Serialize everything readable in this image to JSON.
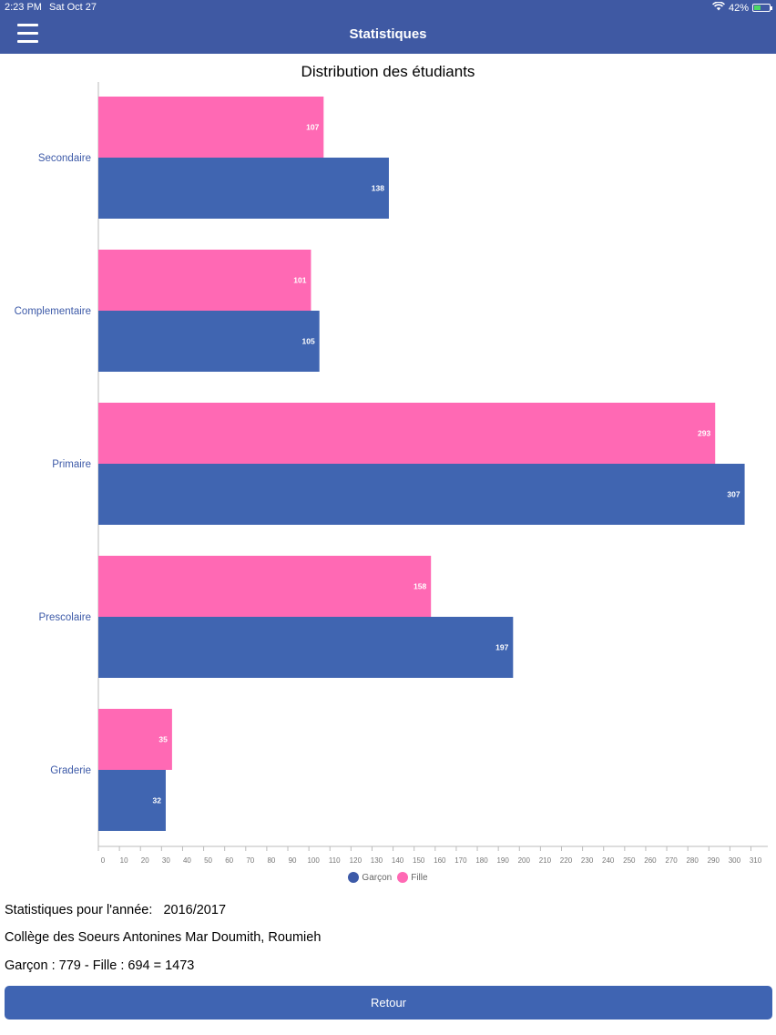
{
  "status_bar": {
    "time": "2:23 PM",
    "date": "Sat Oct 27",
    "battery": "42%"
  },
  "nav": {
    "title": "Statistiques"
  },
  "chart_data": {
    "type": "bar",
    "orientation": "horizontal",
    "title": "Distribution des étudiants",
    "categories": [
      "Secondaire",
      "Complementaire",
      "Primaire",
      "Prescolaire",
      "Graderie"
    ],
    "series": [
      {
        "name": "Fille",
        "color": "#ff69b4",
        "values": [
          107,
          101,
          293,
          158,
          35
        ]
      },
      {
        "name": "Garçon",
        "color": "#4065b1",
        "values": [
          138,
          105,
          307,
          197,
          32
        ]
      }
    ],
    "xlim": [
      0,
      318
    ],
    "xticks": [
      0,
      10,
      20,
      30,
      40,
      50,
      60,
      70,
      80,
      90,
      100,
      110,
      120,
      130,
      140,
      150,
      160,
      170,
      180,
      190,
      200,
      210,
      220,
      230,
      240,
      250,
      260,
      270,
      280,
      290,
      300,
      310
    ],
    "legend": [
      {
        "label": "Garçon",
        "color": "#3d5aa8"
      },
      {
        "label": "Fille",
        "color": "#ff69b4"
      }
    ],
    "legend_position": "bottom",
    "grid": false
  },
  "info": {
    "year_line": "Statistiques pour l'année:   2016/2017",
    "school": "Collège des Soeurs Antonines Mar Doumith, Roumieh",
    "totals": "Garçon : 779 - Fille : 694 = 1473"
  },
  "buttons": {
    "retour": "Retour"
  }
}
